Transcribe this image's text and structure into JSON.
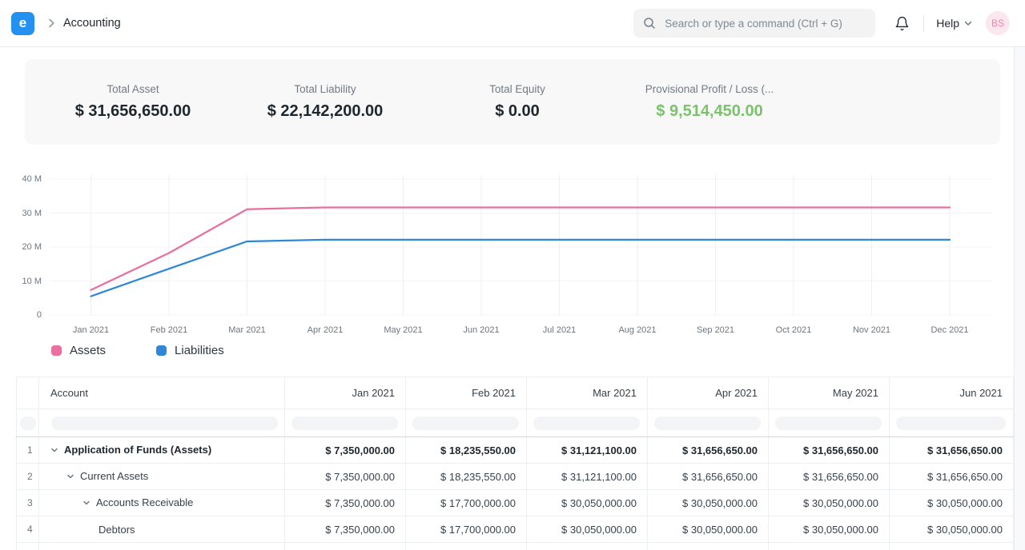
{
  "navbar": {
    "logo_letter": "e",
    "breadcrumb_item": "Accounting",
    "search_placeholder": "Search or type a command (Ctrl + G)",
    "help_label": "Help",
    "avatar_initials": "BS"
  },
  "colors": {
    "accent_blue": "#2490ef",
    "assets_pink": "#e8709f",
    "liabilities_blue": "#2f87d8",
    "positive_green": "#7cc26d",
    "avatar_bg": "#fde7ef",
    "avatar_text": "#ee85ab"
  },
  "summary_cards": [
    {
      "label": "Total Asset",
      "value": "$ 31,656,650.00",
      "emphasis": "default"
    },
    {
      "label": "Total Liability",
      "value": "$ 22,142,200.00",
      "emphasis": "default"
    },
    {
      "label": "Total Equity",
      "value": "$ 0.00",
      "emphasis": "default"
    },
    {
      "label": "Provisional Profit / Loss (...",
      "value": "$ 9,514,450.00",
      "emphasis": "green"
    }
  ],
  "chart_data": {
    "type": "line",
    "title": "",
    "xlabel": "",
    "ylabel": "",
    "grid": true,
    "legend_position": "bottom",
    "ylim": [
      0,
      40000000
    ],
    "x": [
      "Jan 2021",
      "Feb 2021",
      "Mar 2021",
      "Apr 2021",
      "May 2021",
      "Jun 2021",
      "Jul 2021",
      "Aug 2021",
      "Sep 2021",
      "Oct 2021",
      "Nov 2021",
      "Dec 2021"
    ],
    "yticks": [
      {
        "label": "40 M",
        "value": 40000000
      },
      {
        "label": "30 M",
        "value": 30000000
      },
      {
        "label": "20 M",
        "value": 20000000
      },
      {
        "label": "10 M",
        "value": 10000000
      },
      {
        "label": "0",
        "value": 0
      }
    ],
    "series": [
      {
        "name": "Assets",
        "color": "#e8709f",
        "values": [
          7350000,
          18235550,
          31121100,
          31656650,
          31656650,
          31656650,
          31656650,
          31656650,
          31656650,
          31656650,
          31656650,
          31656650
        ]
      },
      {
        "name": "Liabilities",
        "color": "#2f87d8",
        "values": [
          5500000,
          13600000,
          21650000,
          22142200,
          22142200,
          22142200,
          22142200,
          22142200,
          22142200,
          22142200,
          22142200,
          22142200
        ]
      }
    ]
  },
  "table": {
    "columns": [
      "Account",
      "Jan 2021",
      "Feb 2021",
      "Mar 2021",
      "Apr 2021",
      "May 2021",
      "Jun 2021"
    ],
    "rows": [
      {
        "num": "1",
        "indent": 0,
        "expandable": true,
        "bold": true,
        "account": "Application of Funds (Assets)",
        "values": [
          "$ 7,350,000.00",
          "$ 18,235,550.00",
          "$ 31,121,100.00",
          "$ 31,656,650.00",
          "$ 31,656,650.00",
          "$ 31,656,650.00"
        ]
      },
      {
        "num": "2",
        "indent": 1,
        "expandable": true,
        "bold": false,
        "account": "Current Assets",
        "values": [
          "$ 7,350,000.00",
          "$ 18,235,550.00",
          "$ 31,121,100.00",
          "$ 31,656,650.00",
          "$ 31,656,650.00",
          "$ 31,656,650.00"
        ]
      },
      {
        "num": "3",
        "indent": 2,
        "expandable": true,
        "bold": false,
        "account": "Accounts Receivable",
        "values": [
          "$ 7,350,000.00",
          "$ 17,700,000.00",
          "$ 30,050,000.00",
          "$ 30,050,000.00",
          "$ 30,050,000.00",
          "$ 30,050,000.00"
        ]
      },
      {
        "num": "4",
        "indent": 3,
        "expandable": false,
        "bold": false,
        "account": "Debtors",
        "values": [
          "$ 7,350,000.00",
          "$ 17,700,000.00",
          "$ 30,050,000.00",
          "$ 30,050,000.00",
          "$ 30,050,000.00",
          "$ 30,050,000.00"
        ]
      }
    ]
  }
}
